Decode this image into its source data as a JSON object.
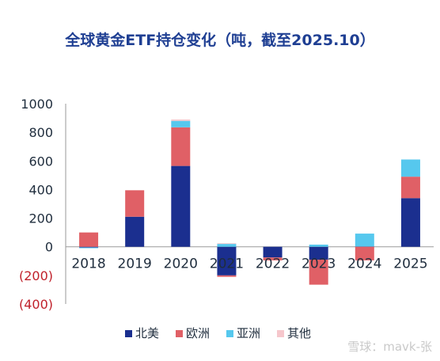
{
  "title": "全球黄金ETF持仓变化（吨，截至2025.10）",
  "watermark": "雪球：mavk-张",
  "colors": {
    "north_america": "#1b2f8f",
    "europe": "#e06066",
    "asia": "#56c8ee",
    "other": "#f6c7cc",
    "axis_text": "#1f2d3d",
    "negative_text": "#c0212b",
    "axis_line": "#9a9a9a",
    "title": "#1f3f93"
  },
  "chart_data": {
    "type": "bar",
    "stacked": true,
    "categories": [
      "2018",
      "2019",
      "2020",
      "2021",
      "2022",
      "2023",
      "2024",
      "2025"
    ],
    "series": [
      {
        "name": "北美",
        "color_key": "north_america",
        "values": [
          -5,
          210,
          565,
          -200,
          -75,
          -90,
          2,
          340
        ]
      },
      {
        "name": "欧洲",
        "color_key": "europe",
        "values": [
          100,
          185,
          270,
          -10,
          -20,
          -175,
          -95,
          150
        ]
      },
      {
        "name": "亚洲",
        "color_key": "asia",
        "values": [
          -5,
          0,
          45,
          20,
          0,
          15,
          90,
          120
        ]
      },
      {
        "name": "其他",
        "color_key": "other",
        "values": [
          0,
          0,
          10,
          5,
          0,
          0,
          0,
          0
        ]
      }
    ],
    "ylim": [
      -400,
      1000
    ],
    "yticks": [
      1000,
      800,
      600,
      400,
      200,
      0,
      -200,
      -400
    ],
    "ytick_labels": [
      "1000",
      "800",
      "600",
      "400",
      "200",
      "0",
      "(200)",
      "(400)"
    ],
    "grid": false,
    "legend_position": "bottom"
  }
}
